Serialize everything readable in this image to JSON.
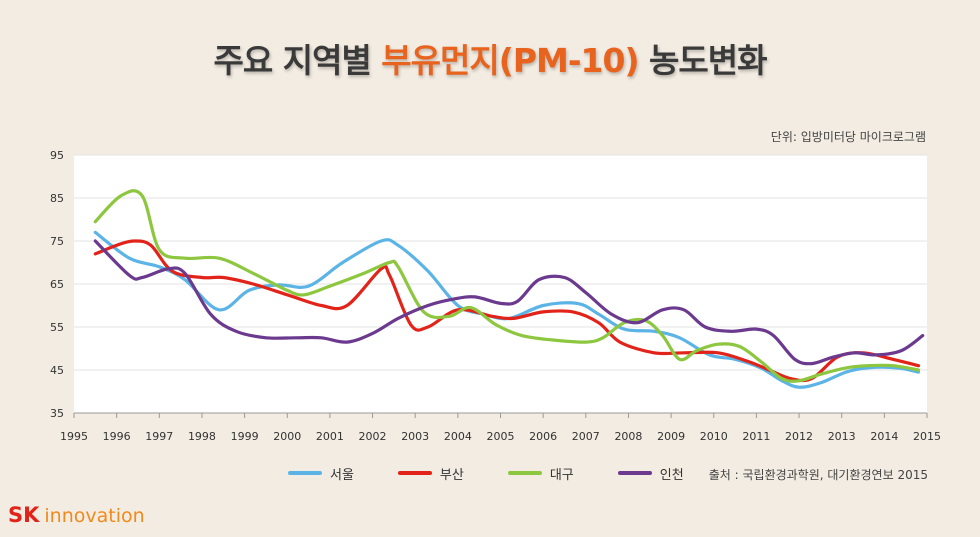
{
  "header": {
    "title_pre": "주요 지역별 ",
    "title_highlight": "부유먼지(PM-10)",
    "title_post": " 농도변화",
    "unit": "단위: 입방미터당 마이크로그램"
  },
  "footer": {
    "source": "출처 : 국립환경과학원, 대기환경연보 2015",
    "brand_sk": "SK",
    "brand_innovation": "innovation"
  },
  "colors": {
    "highlight": "#e8641e",
    "seoul": "#5bb4e5",
    "busan": "#e2231a",
    "daegu": "#8dc63f",
    "incheon": "#6b3a8e",
    "brand_red": "#e2231a",
    "brand_orange": "#f08a1c"
  },
  "chart_data": {
    "type": "line",
    "title": "주요 지역별 부유먼지(PM-10) 농도변화",
    "xlabel": "",
    "ylabel": "단위: 입방미터당 마이크로그램",
    "xlim": [
      1995,
      2015
    ],
    "ylim": [
      35,
      95
    ],
    "x_ticks": [
      1995,
      1996,
      1997,
      1998,
      1999,
      2000,
      2001,
      2002,
      2003,
      2004,
      2005,
      2006,
      2007,
      2008,
      2009,
      2010,
      2011,
      2012,
      2013,
      2014,
      2015
    ],
    "y_ticks": [
      35,
      45,
      55,
      65,
      75,
      85,
      95
    ],
    "grid": "horizontal",
    "legend_position": "bottom",
    "series": [
      {
        "name": "서울",
        "color": "#5bb4e5",
        "points": [
          [
            1995.5,
            77
          ],
          [
            1996.3,
            71
          ],
          [
            1997.0,
            69
          ],
          [
            1997.6,
            66
          ],
          [
            1998.4,
            59
          ],
          [
            1999.1,
            63.5
          ],
          [
            1999.8,
            64.8
          ],
          [
            2000.5,
            64.5
          ],
          [
            2001.3,
            70
          ],
          [
            2002.2,
            75
          ],
          [
            2002.6,
            74
          ],
          [
            2003.3,
            68
          ],
          [
            2004.0,
            60
          ],
          [
            2004.6,
            58
          ],
          [
            2005.2,
            57
          ],
          [
            2006.0,
            60
          ],
          [
            2006.8,
            60.5
          ],
          [
            2007.3,
            58
          ],
          [
            2007.9,
            54.5
          ],
          [
            2008.6,
            54
          ],
          [
            2009.2,
            52.5
          ],
          [
            2009.9,
            48.5
          ],
          [
            2010.5,
            47.5
          ],
          [
            2011.1,
            45.5
          ],
          [
            2011.6,
            42.5
          ],
          [
            2012.0,
            41
          ],
          [
            2012.5,
            42
          ],
          [
            2013.1,
            44.5
          ],
          [
            2013.6,
            45.5
          ],
          [
            2014.3,
            45.5
          ],
          [
            2014.8,
            44.5
          ]
        ]
      },
      {
        "name": "부산",
        "color": "#e2231a",
        "points": [
          [
            1995.5,
            72
          ],
          [
            1996.0,
            74
          ],
          [
            1996.4,
            75
          ],
          [
            1996.8,
            74
          ],
          [
            1997.3,
            68
          ],
          [
            1998.0,
            66.5
          ],
          [
            1998.5,
            66.5
          ],
          [
            1999.2,
            65
          ],
          [
            2000.0,
            62.5
          ],
          [
            2000.8,
            60
          ],
          [
            2001.4,
            60
          ],
          [
            2002.2,
            68.5
          ],
          [
            2002.4,
            67
          ],
          [
            2002.9,
            55.5
          ],
          [
            2003.3,
            55
          ],
          [
            2004.0,
            59
          ],
          [
            2004.8,
            57.5
          ],
          [
            2005.3,
            57
          ],
          [
            2006.0,
            58.5
          ],
          [
            2006.7,
            58.5
          ],
          [
            2007.3,
            56
          ],
          [
            2007.8,
            51.5
          ],
          [
            2008.6,
            49
          ],
          [
            2009.3,
            49
          ],
          [
            2010.1,
            49
          ],
          [
            2010.8,
            47
          ],
          [
            2011.3,
            45
          ],
          [
            2011.8,
            43
          ],
          [
            2012.3,
            43
          ],
          [
            2012.9,
            48
          ],
          [
            2013.5,
            49
          ],
          [
            2014.2,
            47.5
          ],
          [
            2014.8,
            46
          ]
        ]
      },
      {
        "name": "대구",
        "color": "#8dc63f",
        "points": [
          [
            1995.5,
            79.5
          ],
          [
            1996.1,
            85.5
          ],
          [
            1996.6,
            85.5
          ],
          [
            1997.0,
            73
          ],
          [
            1997.6,
            71
          ],
          [
            1998.4,
            71
          ],
          [
            1999.2,
            67.5
          ],
          [
            2000.0,
            63.5
          ],
          [
            2000.4,
            62.5
          ],
          [
            2001.0,
            64.5
          ],
          [
            2001.8,
            67.5
          ],
          [
            2002.4,
            70
          ],
          [
            2002.6,
            69
          ],
          [
            2003.2,
            58.5
          ],
          [
            2003.8,
            57.5
          ],
          [
            2004.3,
            59.5
          ],
          [
            2004.9,
            55.5
          ],
          [
            2005.5,
            53
          ],
          [
            2006.2,
            52
          ],
          [
            2007.0,
            51.5
          ],
          [
            2007.4,
            52.5
          ],
          [
            2007.9,
            56
          ],
          [
            2008.4,
            56.5
          ],
          [
            2008.8,
            53
          ],
          [
            2009.2,
            47.5
          ],
          [
            2009.6,
            49.5
          ],
          [
            2010.1,
            51
          ],
          [
            2010.6,
            50.5
          ],
          [
            2011.1,
            47
          ],
          [
            2011.6,
            43
          ],
          [
            2012.0,
            42.5
          ],
          [
            2012.5,
            44
          ],
          [
            2013.1,
            45.5
          ],
          [
            2013.6,
            46
          ],
          [
            2014.2,
            46
          ],
          [
            2014.8,
            45
          ]
        ]
      },
      {
        "name": "인천",
        "color": "#6b3a8e",
        "points": [
          [
            1995.5,
            75
          ],
          [
            1996.3,
            67
          ],
          [
            1996.6,
            66.5
          ],
          [
            1997.2,
            68.5
          ],
          [
            1997.6,
            67.5
          ],
          [
            1998.2,
            58
          ],
          [
            1998.8,
            54
          ],
          [
            1999.5,
            52.5
          ],
          [
            2000.2,
            52.5
          ],
          [
            2000.8,
            52.5
          ],
          [
            2001.4,
            51.5
          ],
          [
            2002.0,
            53.5
          ],
          [
            2002.6,
            57
          ],
          [
            2003.3,
            60
          ],
          [
            2003.9,
            61.5
          ],
          [
            2004.4,
            62
          ],
          [
            2005.0,
            60.5
          ],
          [
            2005.4,
            61
          ],
          [
            2005.9,
            66
          ],
          [
            2006.5,
            66.5
          ],
          [
            2007.0,
            63
          ],
          [
            2007.6,
            58
          ],
          [
            2008.2,
            56
          ],
          [
            2008.8,
            59
          ],
          [
            2009.3,
            59
          ],
          [
            2009.8,
            55
          ],
          [
            2010.4,
            54
          ],
          [
            2011.0,
            54.5
          ],
          [
            2011.4,
            53
          ],
          [
            2011.9,
            47.5
          ],
          [
            2012.3,
            46.5
          ],
          [
            2012.8,
            48
          ],
          [
            2013.3,
            49
          ],
          [
            2013.8,
            48.5
          ],
          [
            2014.4,
            49.5
          ],
          [
            2014.9,
            53
          ]
        ]
      }
    ]
  }
}
